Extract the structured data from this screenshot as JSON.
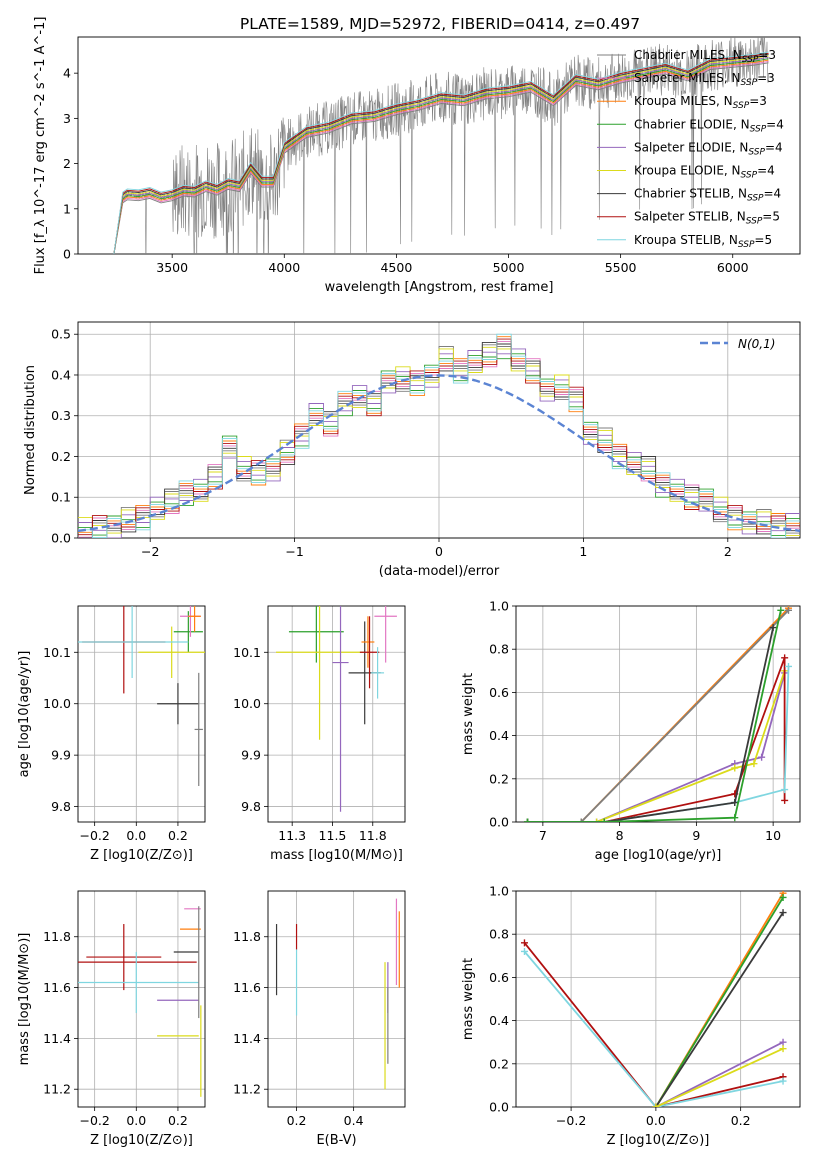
{
  "figure": {
    "title": "PLATE=1589, MJD=52972, FIBERID=0414, z=0.497"
  },
  "colors": {
    "grid": "#b0b0b0",
    "data": "#808080",
    "normal": "#5b84d3"
  },
  "models": [
    {
      "name": "Chabrier MILES",
      "nssp": 3,
      "color": "#7f7f7f"
    },
    {
      "name": "Salpeter MILES",
      "nssp": 3,
      "color": "#e377c2"
    },
    {
      "name": "Kroupa MILES",
      "nssp": 3,
      "color": "#ff7f0e"
    },
    {
      "name": "Chabrier ELODIE",
      "nssp": 4,
      "color": "#2ca02c"
    },
    {
      "name": "Salpeter ELODIE",
      "nssp": 4,
      "color": "#9467bd"
    },
    {
      "name": "Kroupa ELODIE",
      "nssp": 4,
      "color": "#dbdb1b"
    },
    {
      "name": "Chabrier STELIB",
      "nssp": 4,
      "color": "#3a3a3a"
    },
    {
      "name": "Salpeter STELIB",
      "nssp": 5,
      "color": "#b01010"
    },
    {
      "name": "Kroupa STELIB",
      "nssp": 5,
      "color": "#7fd6e0"
    }
  ],
  "chart_data": [
    {
      "id": "spectrum",
      "type": "line",
      "title": "PLATE=1589, MJD=52972, FIBERID=0414, z=0.497",
      "xlabel": "wavelength [Angstrom, rest frame]",
      "ylabel": "Flux [f_λ 10^-17 erg cm^-2 s^-1 A^-1]",
      "xlim": [
        3080,
        6300
      ],
      "ylim": [
        0,
        4.8
      ],
      "xticks": [
        3500,
        4000,
        4500,
        5000,
        5500,
        6000
      ],
      "yticks": [
        0,
        1,
        2,
        3,
        4
      ],
      "legend": "top-right",
      "data_x": [
        3240,
        3280,
        3300,
        3350,
        3400,
        3450,
        3500,
        3550,
        3600,
        3650,
        3700,
        3750,
        3800,
        3850,
        3900,
        3950,
        4000,
        4100,
        4200,
        4300,
        4400,
        4500,
        4600,
        4700,
        4800,
        4900,
        5000,
        5100,
        5200,
        5300,
        5400,
        5500,
        5600,
        5700,
        5800,
        5900,
        6000,
        6100,
        6160
      ],
      "model_y": [
        0.0,
        1.25,
        1.32,
        1.3,
        1.35,
        1.25,
        1.3,
        1.4,
        1.38,
        1.5,
        1.42,
        1.55,
        1.5,
        1.9,
        1.6,
        1.6,
        2.35,
        2.7,
        2.8,
        3.0,
        3.05,
        3.2,
        3.3,
        3.45,
        3.4,
        3.55,
        3.6,
        3.7,
        3.4,
        3.85,
        3.75,
        3.9,
        4.0,
        4.1,
        3.95,
        4.2,
        4.25,
        4.3,
        4.35
      ]
    },
    {
      "id": "residuals",
      "type": "bar",
      "xlabel": "(data-model)/error",
      "ylabel": "Normed distribution",
      "xlim": [
        -2.5,
        2.5
      ],
      "ylim": [
        0,
        0.53
      ],
      "xticks": [
        -2,
        -1,
        0,
        1,
        2
      ],
      "yticks": [
        0.0,
        0.1,
        0.2,
        0.3,
        0.4,
        0.5
      ],
      "legend": "top-right",
      "normal_label": "N(0,1)",
      "bins": [
        -2.5,
        -2.4,
        -2.3,
        -2.2,
        -2.1,
        -2.0,
        -1.9,
        -1.8,
        -1.7,
        -1.6,
        -1.5,
        -1.4,
        -1.3,
        -1.2,
        -1.1,
        -1.0,
        -0.9,
        -0.8,
        -0.7,
        -0.6,
        -0.5,
        -0.4,
        -0.3,
        -0.2,
        -0.1,
        0.0,
        0.1,
        0.2,
        0.3,
        0.4,
        0.5,
        0.6,
        0.7,
        0.8,
        0.9,
        1.0,
        1.1,
        1.2,
        1.3,
        1.4,
        1.5,
        1.6,
        1.7,
        1.8,
        1.9,
        2.0,
        2.1,
        2.2,
        2.3,
        2.4,
        2.5
      ],
      "hist": [
        0.02,
        0.025,
        0.03,
        0.045,
        0.05,
        0.07,
        0.09,
        0.11,
        0.12,
        0.15,
        0.22,
        0.17,
        0.16,
        0.17,
        0.21,
        0.25,
        0.3,
        0.28,
        0.33,
        0.35,
        0.33,
        0.38,
        0.39,
        0.38,
        0.4,
        0.44,
        0.41,
        0.43,
        0.45,
        0.47,
        0.44,
        0.41,
        0.36,
        0.37,
        0.34,
        0.26,
        0.24,
        0.2,
        0.18,
        0.17,
        0.13,
        0.12,
        0.1,
        0.09,
        0.07,
        0.05,
        0.04,
        0.04,
        0.03,
        0.03
      ]
    },
    {
      "id": "age_vs_Z",
      "type": "scatter",
      "xlabel": "Z [log10(Z/Z⊙)]",
      "ylabel": "age [log10(age/yr)]",
      "xlim": [
        -0.28,
        0.33
      ],
      "ylim": [
        9.77,
        10.19
      ],
      "xticks": [
        -0.2,
        0.0,
        0.2
      ],
      "yticks": [
        9.8,
        9.9,
        10.0,
        10.1
      ],
      "points": [
        {
          "x": 0.2,
          "y": 10.0,
          "xerr": 0.1,
          "yerr": 0.04,
          "model": 6
        },
        {
          "x": 0.25,
          "y": 10.14,
          "xerr": 0.07,
          "yerr": 0.04,
          "model": 3
        },
        {
          "x": 0.17,
          "y": 10.1,
          "xerr": 0.16,
          "yerr": 0.05,
          "model": 5
        },
        {
          "x": -0.06,
          "y": 10.12,
          "xerr": 0.2,
          "yerr": 0.1,
          "model": 7
        },
        {
          "x": -0.02,
          "y": 10.12,
          "xerr": 0.27,
          "yerr": 0.07,
          "model": 8
        },
        {
          "x": 0.26,
          "y": 10.17,
          "xerr": 0.05,
          "yerr": 0.04,
          "model": 1
        },
        {
          "x": 0.28,
          "y": 10.17,
          "xerr": 0.03,
          "yerr": 0.03,
          "model": 2
        },
        {
          "x": 0.3,
          "y": 9.95,
          "xerr": 0.02,
          "yerr": 0.11,
          "model": 0
        }
      ]
    },
    {
      "id": "age_vs_mass",
      "type": "scatter",
      "xlabel": "mass [log10(M/M⊙)]",
      "ylabel": "",
      "xlim": [
        11.1,
        11.95
      ],
      "ylim": [
        9.77,
        10.19
      ],
      "xticks": [
        11.25,
        11.5,
        11.75
      ],
      "yticks": [
        9.8,
        9.9,
        10.0,
        10.1
      ],
      "points": [
        {
          "x": 11.4,
          "y": 10.14,
          "xerr": 0.17,
          "yerr": 0.06,
          "model": 3
        },
        {
          "x": 11.42,
          "y": 10.1,
          "xerr": 0.27,
          "yerr": 0.17,
          "model": 5
        },
        {
          "x": 11.55,
          "y": 10.08,
          "xerr": 0.05,
          "yerr": 0.29,
          "model": 4
        },
        {
          "x": 11.7,
          "y": 10.06,
          "xerr": 0.1,
          "yerr": 0.1,
          "model": 6
        },
        {
          "x": 11.72,
          "y": 10.12,
          "xerr": 0.04,
          "yerr": 0.05,
          "model": 2
        },
        {
          "x": 11.73,
          "y": 10.1,
          "xerr": 0.06,
          "yerr": 0.07,
          "model": 7
        },
        {
          "x": 11.83,
          "y": 10.17,
          "xerr": 0.07,
          "yerr": 0.09,
          "model": 1
        },
        {
          "x": 11.78,
          "y": 10.06,
          "xerr": 0.04,
          "yerr": 0.05,
          "model": 8
        }
      ]
    },
    {
      "id": "weight_vs_age",
      "type": "line",
      "xlabel": "age [log10(age/yr)]",
      "ylabel": "mass weight",
      "xlim": [
        6.65,
        10.35
      ],
      "ylim": [
        0,
        1.0
      ],
      "xticks": [
        7,
        8,
        9,
        10
      ],
      "yticks": [
        0.0,
        0.2,
        0.4,
        0.6,
        0.8,
        1.0
      ],
      "series": [
        {
          "model": 2,
          "x": [
            6.8,
            7.5,
            10.2
          ],
          "y": [
            0.0,
            0.0,
            0.99
          ]
        },
        {
          "model": 0,
          "x": [
            6.8,
            7.5,
            10.2
          ],
          "y": [
            0.0,
            0.0,
            0.98
          ]
        },
        {
          "model": 4,
          "x": [
            6.8,
            7.7,
            9.5,
            9.85,
            10.15
          ],
          "y": [
            0.0,
            0.0,
            0.27,
            0.3,
            0.69
          ]
        },
        {
          "model": 5,
          "x": [
            6.8,
            7.7,
            9.5,
            9.75,
            10.15
          ],
          "y": [
            0.0,
            0.0,
            0.25,
            0.27,
            0.7
          ]
        },
        {
          "model": 7,
          "x": [
            6.8,
            7.8,
            9.5,
            10.15,
            10.15
          ],
          "y": [
            0.0,
            0.0,
            0.13,
            0.76,
            0.1
          ]
        },
        {
          "model": 8,
          "x": [
            6.8,
            7.8,
            9.5,
            10.15,
            10.2
          ],
          "y": [
            0.0,
            0.0,
            0.09,
            0.15,
            0.72
          ]
        },
        {
          "model": 6,
          "x": [
            6.8,
            7.8,
            9.5,
            10.0
          ],
          "y": [
            0.0,
            0.0,
            0.09,
            0.9
          ]
        },
        {
          "model": 3,
          "x": [
            6.8,
            7.8,
            9.5,
            10.1
          ],
          "y": [
            0.0,
            0.0,
            0.02,
            0.98
          ]
        }
      ]
    },
    {
      "id": "mass_vs_Z",
      "type": "scatter",
      "xlabel": "Z [log10(Z/Z⊙)]",
      "ylabel": "mass [log10(M/M⊙)]",
      "xlim": [
        -0.28,
        0.33
      ],
      "ylim": [
        11.13,
        11.98
      ],
      "xticks": [
        -0.2,
        0.0,
        0.2
      ],
      "yticks": [
        11.2,
        11.4,
        11.6,
        11.8
      ],
      "points": [
        {
          "x": -0.06,
          "y": 11.72,
          "xerr": 0.18,
          "yerr": 0.13,
          "model": 7
        },
        {
          "x": -0.06,
          "y": 11.7,
          "xerr": 0.35,
          "yerr": 0.0,
          "model": 7
        },
        {
          "x": 0.0,
          "y": 11.62,
          "xerr": 0.3,
          "yerr": 0.12,
          "model": 8
        },
        {
          "x": 0.2,
          "y": 11.55,
          "xerr": 0.1,
          "yerr": 0.0,
          "model": 4
        },
        {
          "x": 0.2,
          "y": 11.41,
          "xerr": 0.1,
          "yerr": 0.0,
          "model": 5
        },
        {
          "x": 0.24,
          "y": 11.74,
          "xerr": 0.06,
          "yerr": 0.0,
          "model": 6
        },
        {
          "x": 0.26,
          "y": 11.83,
          "xerr": 0.05,
          "yerr": 0.0,
          "model": 2
        },
        {
          "x": 0.27,
          "y": 11.91,
          "xerr": 0.04,
          "yerr": 0.0,
          "model": 1
        },
        {
          "x": 0.3,
          "y": 11.7,
          "xerr": 0.0,
          "yerr": 0.22,
          "model": 0
        },
        {
          "x": 0.31,
          "y": 11.35,
          "xerr": 0.0,
          "yerr": 0.18,
          "model": 5
        }
      ]
    },
    {
      "id": "mass_vs_ebv",
      "type": "scatter",
      "xlabel": "E(B-V)",
      "ylabel": "",
      "xlim": [
        0.1,
        0.58
      ],
      "ylim": [
        11.13,
        11.98
      ],
      "xticks": [
        0.2,
        0.4
      ],
      "yticks": [
        11.2,
        11.4,
        11.6,
        11.8
      ],
      "points": [
        {
          "x": 0.13,
          "y": 11.71,
          "xerr": 0.0,
          "yerr": 0.14,
          "model": 6
        },
        {
          "x": 0.2,
          "y": 11.8,
          "xerr": 0.0,
          "yerr": 0.05,
          "model": 7
        },
        {
          "x": 0.2,
          "y": 11.62,
          "xerr": 0.0,
          "yerr": 0.13,
          "model": 8
        },
        {
          "x": 0.51,
          "y": 11.45,
          "xerr": 0.0,
          "yerr": 0.25,
          "model": 5
        },
        {
          "x": 0.52,
          "y": 11.6,
          "xerr": 0.0,
          "yerr": 0.1,
          "model": 4
        },
        {
          "x": 0.52,
          "y": 11.45,
          "xerr": 0.0,
          "yerr": 0.15,
          "model": 0
        },
        {
          "x": 0.55,
          "y": 11.78,
          "xerr": 0.0,
          "yerr": 0.17,
          "model": 1
        },
        {
          "x": 0.56,
          "y": 11.75,
          "xerr": 0.0,
          "yerr": 0.15,
          "model": 2
        }
      ]
    },
    {
      "id": "weight_vs_Z",
      "type": "line",
      "xlabel": "Z [log10(Z/Z⊙)]",
      "ylabel": "mass weight",
      "xlim": [
        -0.33,
        0.34
      ],
      "ylim": [
        0,
        1.0
      ],
      "xticks": [
        -0.2,
        0.0,
        0.2
      ],
      "yticks": [
        0.0,
        0.2,
        0.4,
        0.6,
        0.8,
        1.0
      ],
      "series": [
        {
          "model": 7,
          "x": [
            -0.31,
            0.0,
            0.3
          ],
          "y": [
            0.76,
            0.0,
            0.14
          ]
        },
        {
          "model": 8,
          "x": [
            -0.31,
            0.0,
            0.3
          ],
          "y": [
            0.72,
            0.0,
            0.12
          ]
        },
        {
          "model": 2,
          "x": [
            0.0,
            0.3
          ],
          "y": [
            0.0,
            0.99
          ]
        },
        {
          "model": 3,
          "x": [
            0.0,
            0.3
          ],
          "y": [
            0.0,
            0.97
          ]
        },
        {
          "model": 6,
          "x": [
            0.0,
            0.3
          ],
          "y": [
            0.0,
            0.9
          ]
        },
        {
          "model": 4,
          "x": [
            0.0,
            0.3
          ],
          "y": [
            0.0,
            0.3
          ]
        },
        {
          "model": 5,
          "x": [
            0.0,
            0.3
          ],
          "y": [
            0.0,
            0.27
          ]
        }
      ]
    }
  ]
}
